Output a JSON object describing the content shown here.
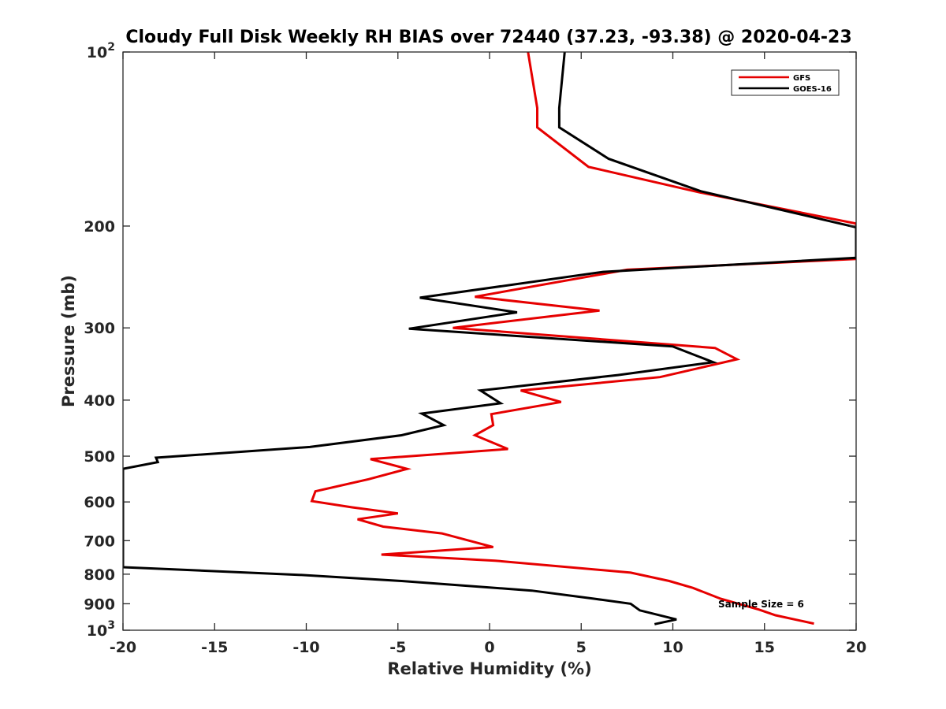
{
  "chart_data": {
    "type": "line",
    "title": "Cloudy Full Disk Weekly RH BIAS over 72440 (37.23, -93.38) @ 2020-04-23",
    "xlabel": "Relative Humidity (%)",
    "ylabel": "Pressure (mb)",
    "xlim": [
      -20,
      20
    ],
    "ylim": [
      100,
      1000
    ],
    "y_scale": "log",
    "y_reversed": true,
    "xticks": [
      -20,
      -15,
      -10,
      -5,
      0,
      5,
      10,
      15,
      20
    ],
    "xtick_labels": [
      "-20",
      "-15",
      "-10",
      "-5",
      "0",
      "5",
      "10",
      "15",
      "20"
    ],
    "yticks": [
      100,
      200,
      300,
      400,
      500,
      600,
      700,
      800,
      900,
      1000
    ],
    "ytick_labels": [
      "10²",
      "200",
      "300",
      "400",
      "500",
      "600",
      "700",
      "800",
      "900",
      "10³"
    ],
    "grid": false,
    "legend_position": "top-right",
    "annotation": "Sample Size = 6",
    "series": [
      {
        "name": "GFS",
        "color": "#e60000",
        "points": [
          [
            2.1,
            100
          ],
          [
            2.6,
            125
          ],
          [
            2.6,
            135
          ],
          [
            5.4,
            158
          ],
          [
            11.5,
            175
          ],
          [
            20,
            198
          ],
          [
            20,
            228
          ],
          [
            7.5,
            238
          ],
          [
            -0.8,
            265
          ],
          [
            6.0,
            280
          ],
          [
            -2.0,
            300
          ],
          [
            12.3,
            325
          ],
          [
            13.5,
            340
          ],
          [
            9.3,
            365
          ],
          [
            2.4,
            383
          ],
          [
            1.7,
            385
          ],
          [
            3.9,
            403
          ],
          [
            0.1,
            423
          ],
          [
            0.2,
            442
          ],
          [
            -0.8,
            460
          ],
          [
            1.0,
            486
          ],
          [
            -6.5,
            506
          ],
          [
            -4.5,
            526
          ],
          [
            -6.6,
            548
          ],
          [
            -9.5,
            575
          ],
          [
            -9.7,
            598
          ],
          [
            -7.5,
            613
          ],
          [
            -5.0,
            628
          ],
          [
            -7.2,
            643
          ],
          [
            -5.8,
            662
          ],
          [
            -2.6,
            680
          ],
          [
            0.2,
            718
          ],
          [
            -5.9,
            740
          ],
          [
            0.3,
            758
          ],
          [
            7.7,
            795
          ],
          [
            9.8,
            822
          ],
          [
            11.1,
            845
          ],
          [
            12.6,
            882
          ],
          [
            14.7,
            921
          ],
          [
            15.6,
            942
          ],
          [
            17.7,
            974
          ]
        ]
      },
      {
        "name": "GOES-16",
        "color": "#000000",
        "points": [
          [
            4.1,
            100
          ],
          [
            3.8,
            125
          ],
          [
            3.8,
            135
          ],
          [
            6.5,
            153
          ],
          [
            11.5,
            174
          ],
          [
            20,
            201
          ],
          [
            20,
            227
          ],
          [
            6.2,
            240
          ],
          [
            -3.8,
            266
          ],
          [
            1.5,
            282
          ],
          [
            -4.4,
            301
          ],
          [
            10.0,
            323
          ],
          [
            12.2,
            344
          ],
          [
            7.0,
            362
          ],
          [
            -0.5,
            385
          ],
          [
            0.6,
            405
          ],
          [
            -3.7,
            422
          ],
          [
            -2.5,
            442
          ],
          [
            -4.8,
            460
          ],
          [
            -9.8,
            482
          ],
          [
            -18.2,
            503
          ],
          [
            -18.1,
            512
          ],
          [
            -20,
            526
          ],
          [
            -20,
            778
          ],
          [
            -10.4,
            802
          ],
          [
            -4.8,
            822
          ],
          [
            2.3,
            854
          ],
          [
            5.7,
            882
          ],
          [
            7.7,
            900
          ],
          [
            8.2,
            924
          ],
          [
            10.2,
            958
          ],
          [
            9.0,
            976
          ]
        ]
      }
    ]
  }
}
